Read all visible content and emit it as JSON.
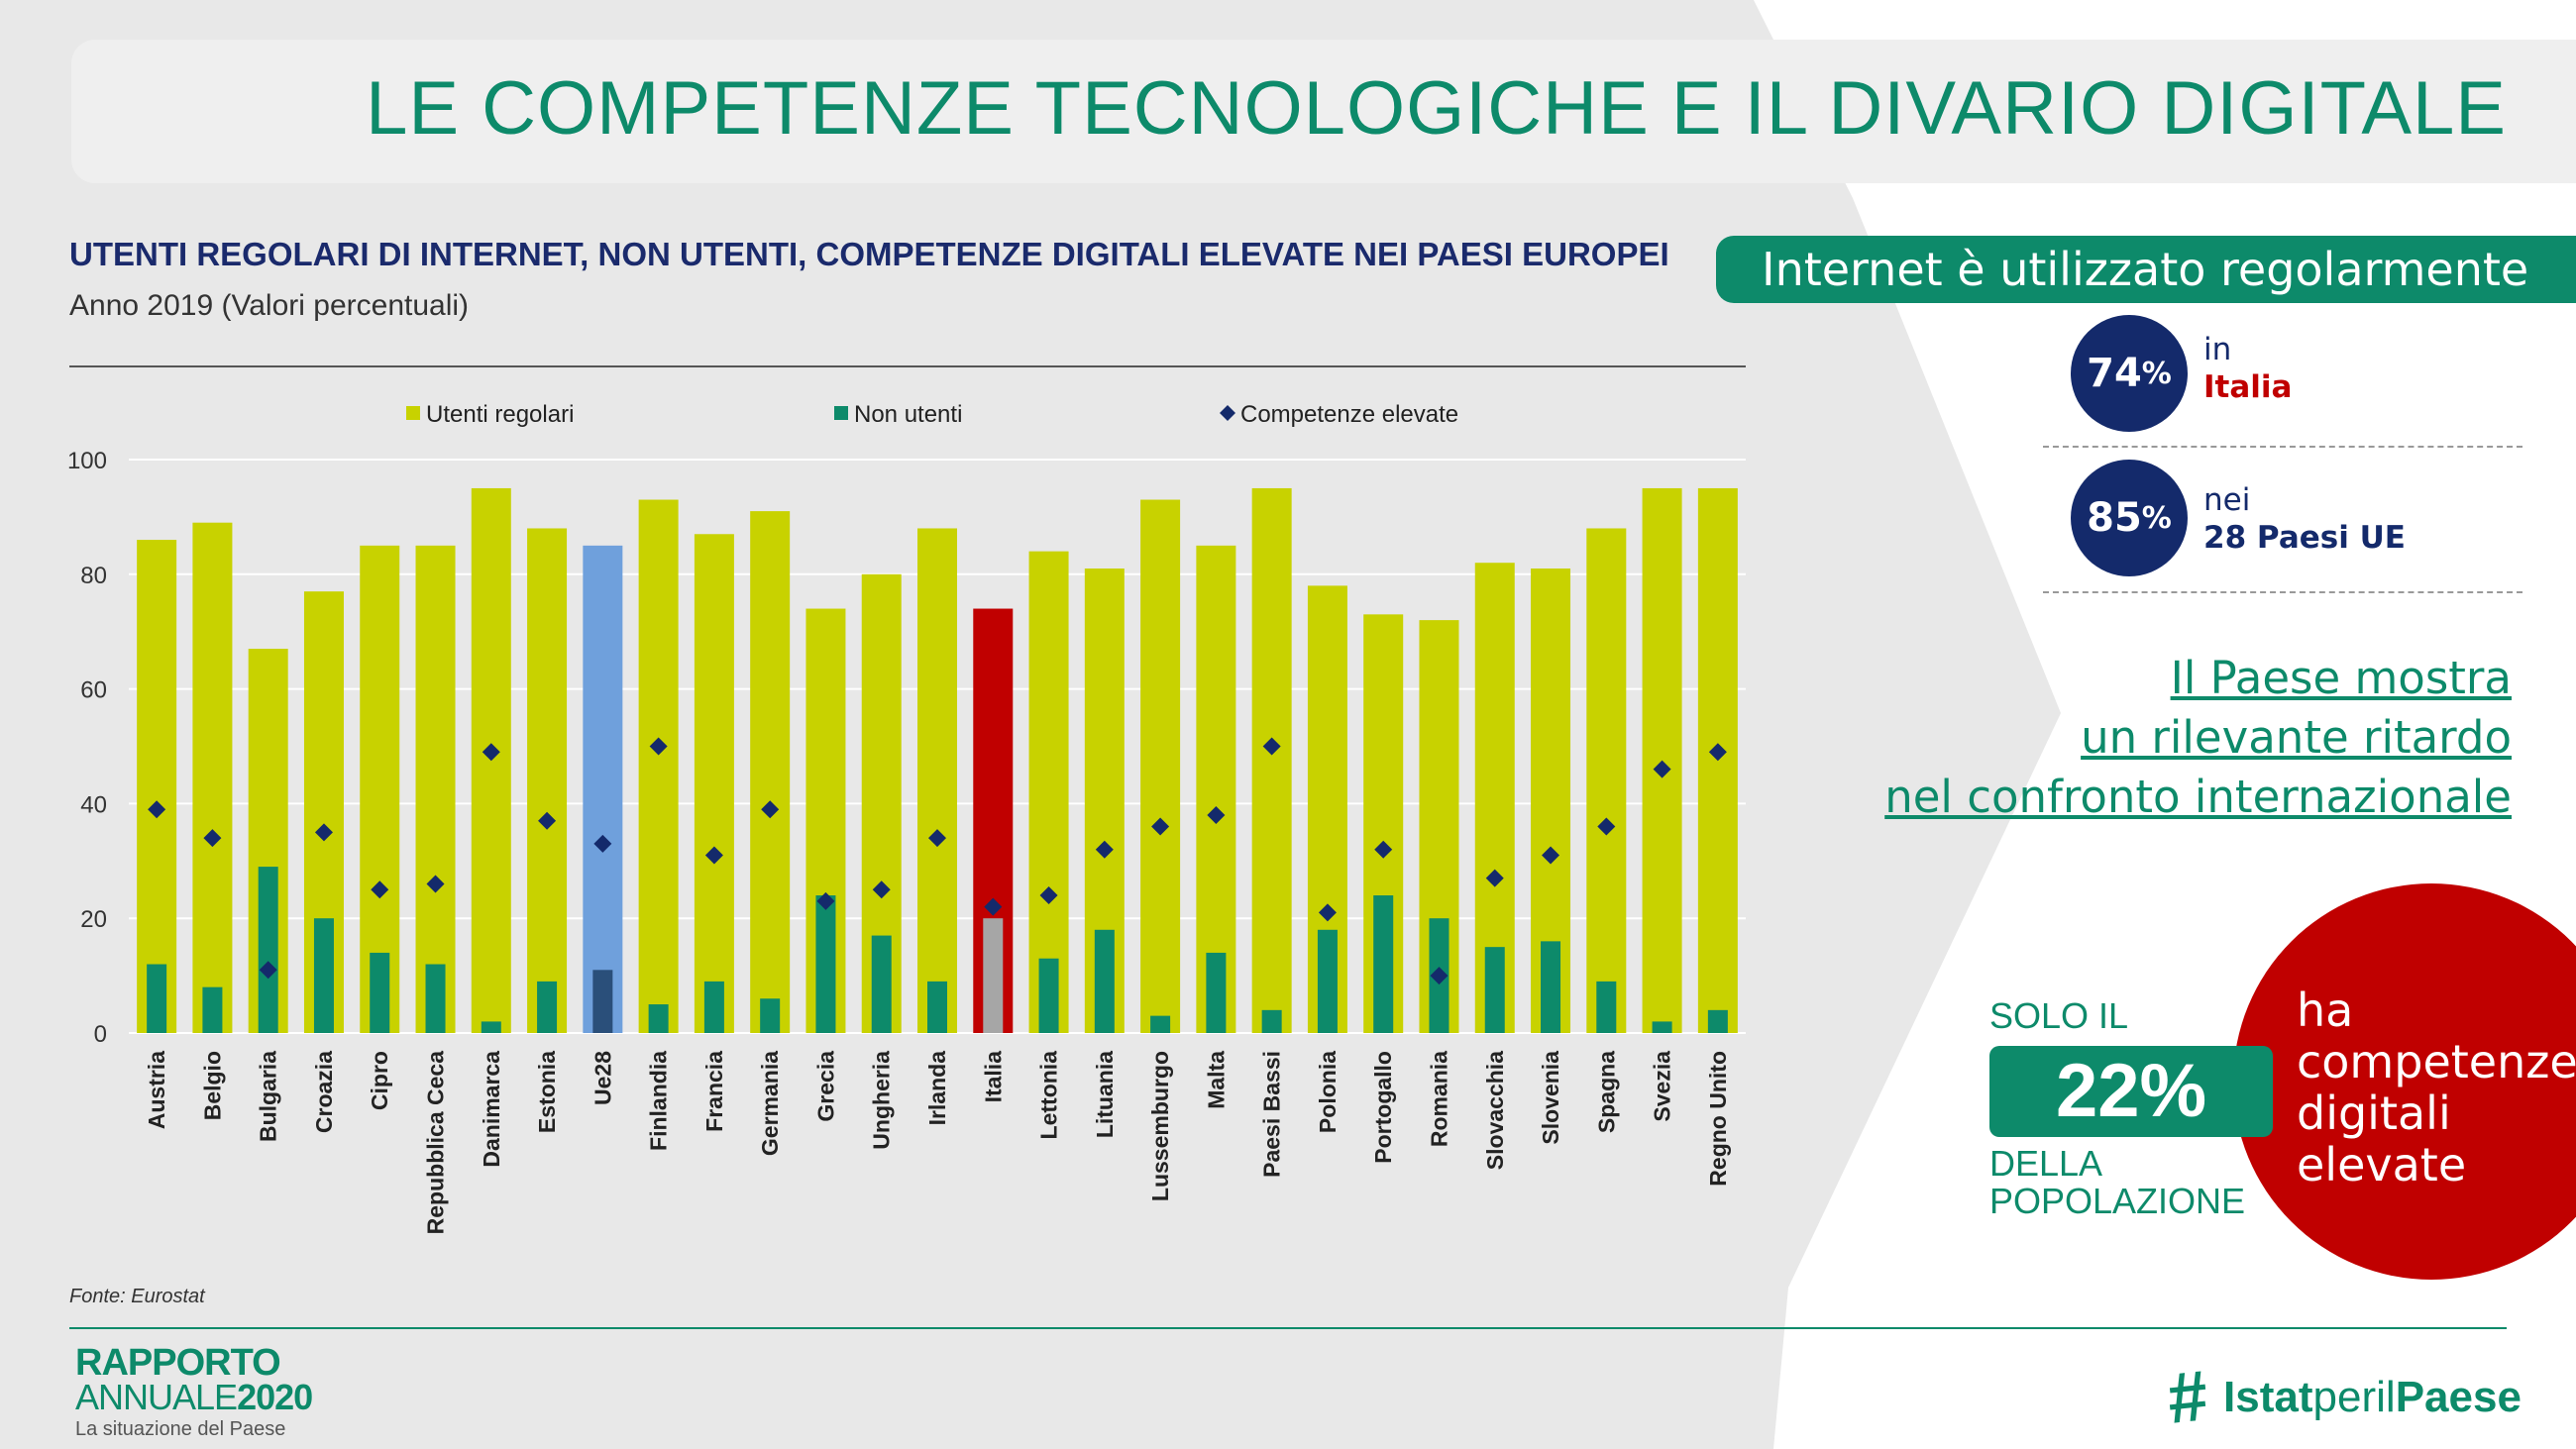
{
  "header": {
    "title": "LE COMPETENZE TECNOLOGICHE E IL DIVARIO DIGITALE"
  },
  "chart": {
    "title": "UTENTI REGOLARI DI INTERNET, NON UTENTI, COMPETENZE DIGITALI ELEVATE NEI PAESI EUROPEI",
    "subtitle": "Anno 2019 (Valori percentuali)",
    "source": "Fonte: Eurostat"
  },
  "chart_data": {
    "type": "bar",
    "categories": [
      "Austria",
      "Belgio",
      "Bulgaria",
      "Croazia",
      "Cipro",
      "Repubblica Ceca",
      "Danimarca",
      "Estonia",
      "Ue28",
      "Finlandia",
      "Francia",
      "Germania",
      "Grecia",
      "Ungheria",
      "Irlanda",
      "Italia",
      "Lettonia",
      "Lituania",
      "Lussemburgo",
      "Malta",
      "Paesi Bassi",
      "Polonia",
      "Portogallo",
      "Romania",
      "Slovacchia",
      "Slovenia",
      "Spagna",
      "Svezia",
      "Regno Unito"
    ],
    "series": [
      {
        "name": "Utenti regolari",
        "kind": "bar",
        "color": "#c8d200",
        "values": [
          86,
          89,
          67,
          77,
          85,
          85,
          95,
          88,
          85,
          93,
          87,
          91,
          74,
          80,
          88,
          74,
          84,
          81,
          93,
          85,
          95,
          78,
          73,
          72,
          82,
          81,
          88,
          95,
          95
        ]
      },
      {
        "name": "Non utenti",
        "kind": "bar",
        "color": "#0d8a6a",
        "values": [
          12,
          8,
          29,
          20,
          14,
          12,
          2,
          9,
          11,
          5,
          9,
          6,
          24,
          17,
          9,
          20,
          13,
          18,
          3,
          14,
          4,
          18,
          24,
          20,
          15,
          16,
          9,
          2,
          4
        ]
      },
      {
        "name": "Competenze elevate",
        "kind": "marker",
        "color": "#142a6b",
        "values": [
          39,
          34,
          11,
          35,
          25,
          26,
          49,
          37,
          33,
          50,
          31,
          39,
          23,
          25,
          34,
          22,
          24,
          32,
          36,
          38,
          50,
          21,
          32,
          10,
          27,
          31,
          36,
          46,
          49
        ]
      }
    ],
    "highlight": {
      "Ue28": {
        "bar": "#6fa0dc",
        "inner": "#2a4f7a"
      },
      "Italia": {
        "bar": "#c00000",
        "inner": "#a6a6a6"
      }
    },
    "yticks": [
      0,
      20,
      40,
      60,
      80,
      100
    ],
    "ylim": [
      0,
      100
    ],
    "legend_position": "top"
  },
  "side": {
    "banner": "Internet è utilizzato regolarmente",
    "stat1": {
      "pct": "74",
      "sym": "%",
      "pre": "in",
      "label": "Italia"
    },
    "stat2": {
      "pct": "85",
      "sym": "%",
      "pre": "nei",
      "label": "28 Paesi UE"
    },
    "message": [
      "Il Paese mostra",
      "un rilevante ritardo",
      "nel confronto internazionale"
    ],
    "solo": "SOLO IL",
    "pct": "22%",
    "della": [
      "DELLA",
      "POPOLAZIONE"
    ],
    "red": [
      "ha",
      "competenze",
      "digitali",
      "elevate"
    ]
  },
  "footer": {
    "rapporto": "RAPPORTO",
    "annuale": "ANNUALE",
    "year": "2020",
    "situazione": "La situazione del Paese",
    "hashtag": "#",
    "istat": "Istat",
    "peril": "peril",
    "paese": "Paese"
  },
  "colors": {
    "accent": "#0d8a6a",
    "navy": "#142a6b",
    "red": "#c00000"
  }
}
